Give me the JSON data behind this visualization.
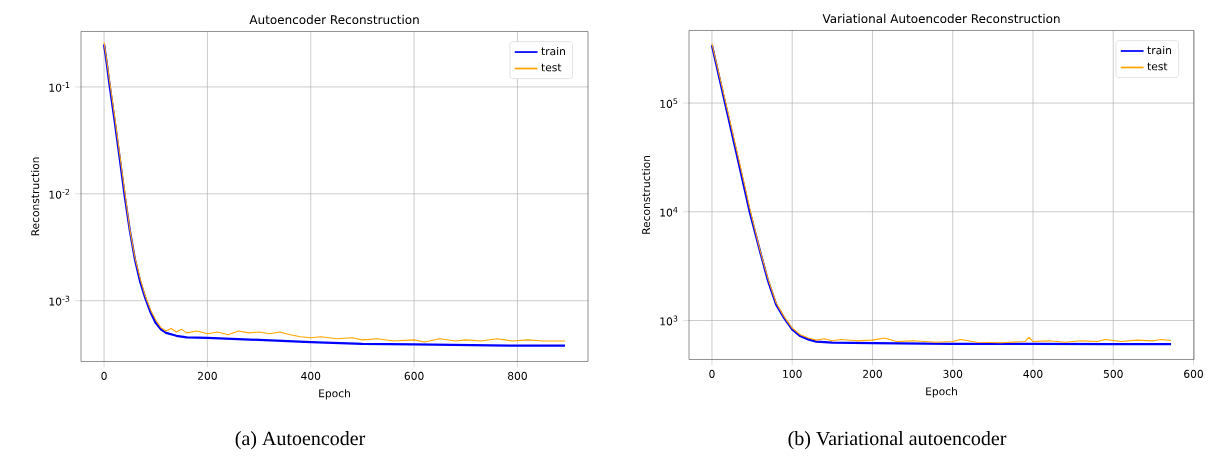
{
  "chart_data": [
    {
      "type": "line",
      "title": "Autoencoder Reconstruction",
      "xlabel": "Epoch",
      "ylabel": "Reconstruction",
      "annotations": [
        "(a) Autoencoder"
      ],
      "xlim": [
        -44.6,
        936.6
      ],
      "xticks": [
        0,
        200,
        400,
        600,
        800
      ],
      "ylim": [
        0.00027,
        0.33
      ],
      "yticks": [
        {
          "value": 0.001,
          "label": "10$^{-3}$"
        },
        {
          "value": 0.01,
          "label": "10$^{-2}$"
        },
        {
          "value": 0.1,
          "label": "10$^{-1}$"
        }
      ],
      "log": true,
      "grid": true,
      "legend": "top right",
      "series": [
        {
          "name": "train",
          "color": "#0000ff",
          "x": [
            0,
            5,
            10,
            20,
            30,
            40,
            50,
            60,
            70,
            80,
            90,
            100,
            110,
            120,
            140,
            160,
            200,
            300,
            400,
            500,
            600,
            700,
            800,
            892
          ],
          "values": [
            0.25,
            0.17,
            0.11,
            0.05,
            0.022,
            0.0095,
            0.0045,
            0.0024,
            0.0015,
            0.00105,
            0.00078,
            0.00062,
            0.00054,
            0.0005,
            0.00047,
            0.000455,
            0.00045,
            0.00043,
            0.00041,
            0.000395,
            0.00039,
            0.000385,
            0.00038,
            0.00038
          ]
        },
        {
          "name": "test",
          "color": "#ffa500",
          "x": [
            0,
            5,
            10,
            20,
            30,
            40,
            50,
            60,
            70,
            80,
            90,
            100,
            110,
            120,
            130,
            140,
            150,
            160,
            180,
            200,
            220,
            240,
            260,
            280,
            300,
            320,
            340,
            360,
            380,
            400,
            420,
            450,
            480,
            500,
            530,
            560,
            600,
            620,
            650,
            680,
            700,
            730,
            760,
            790,
            820,
            850,
            892
          ],
          "values": [
            0.26,
            0.18,
            0.12,
            0.055,
            0.024,
            0.0105,
            0.0046,
            0.0025,
            0.0016,
            0.0011,
            0.00082,
            0.00066,
            0.00056,
            0.00052,
            0.00055,
            0.00051,
            0.00054,
            0.0005,
            0.00052,
            0.00049,
            0.00051,
            0.00048,
            0.00052,
            0.0005,
            0.00051,
            0.00049,
            0.00051,
            0.00048,
            0.00046,
            0.00045,
            0.00046,
            0.00044,
            0.00045,
            0.00043,
            0.00044,
            0.00042,
            0.00043,
            0.00041,
            0.00044,
            0.00042,
            0.00043,
            0.00042,
            0.00044,
            0.00042,
            0.00043,
            0.00042,
            0.00042
          ]
        }
      ]
    },
    {
      "type": "line",
      "title": "Variational Autoencoder Reconstruction",
      "xlabel": "Epoch",
      "ylabel": "Reconstruction",
      "annotations": [
        "(b) Variational autoencoder"
      ],
      "xlim": [
        -28.6,
        600.6
      ],
      "xticks": [
        0,
        100,
        200,
        300,
        400,
        500,
        600
      ],
      "ylim": [
        438,
        465000
      ],
      "yticks": [
        {
          "value": 1000,
          "label": "10$^{3}$"
        },
        {
          "value": 10000,
          "label": "10$^{4}$"
        },
        {
          "value": 100000,
          "label": "10$^{5}$"
        }
      ],
      "log": true,
      "grid": true,
      "legend": "top right",
      "series": [
        {
          "name": "train",
          "color": "#0000ff",
          "x": [
            0,
            10,
            20,
            30,
            40,
            47,
            60,
            70,
            80,
            90,
            100,
            110,
            120,
            130,
            150,
            200,
            300,
            400,
            500,
            572
          ],
          "values": [
            340000,
            160000,
            76000,
            36000,
            17000,
            10000,
            4300,
            2300,
            1400,
            1050,
            830,
            720,
            670,
            640,
            625,
            620,
            610,
            610,
            605,
            605
          ]
        },
        {
          "name": "test",
          "color": "#ffa500",
          "x": [
            0,
            10,
            20,
            30,
            40,
            47,
            60,
            70,
            80,
            90,
            100,
            110,
            120,
            130,
            140,
            150,
            160,
            180,
            200,
            215,
            230,
            250,
            280,
            300,
            310,
            330,
            360,
            390,
            395,
            400,
            420,
            440,
            460,
            480,
            490,
            510,
            530,
            550,
            560,
            572
          ],
          "values": [
            350000,
            170000,
            82000,
            39000,
            18500,
            10800,
            4400,
            2400,
            1450,
            1080,
            850,
            740,
            690,
            660,
            680,
            650,
            670,
            650,
            660,
            690,
            640,
            650,
            630,
            640,
            670,
            630,
            625,
            640,
            700,
            640,
            650,
            630,
            650,
            640,
            670,
            640,
            660,
            650,
            670,
            655
          ]
        }
      ]
    }
  ]
}
